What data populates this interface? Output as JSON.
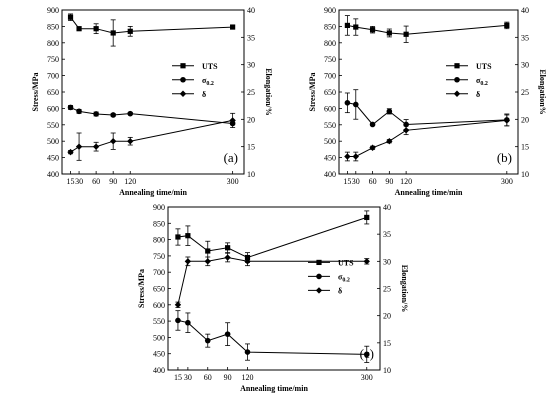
{
  "chart_data": [
    {
      "type": "line",
      "panel_label": "(a)",
      "xlabel": "Annealing time/min",
      "ylabel": "Stress/MPa",
      "y2label": "Elongation/%",
      "x": [
        15,
        30,
        60,
        90,
        120,
        300
      ],
      "xticks": [
        15,
        30,
        60,
        90,
        120,
        300
      ],
      "ylim": [
        400,
        900
      ],
      "yticks": [
        400,
        450,
        500,
        550,
        600,
        650,
        700,
        750,
        800,
        850,
        900
      ],
      "y2lim": [
        10,
        40
      ],
      "y2ticks": [
        10,
        15,
        20,
        25,
        30,
        35,
        40
      ],
      "legend_position": "right-middle",
      "legend": [
        "UTS",
        "σ0.2",
        "δ"
      ],
      "series": [
        {
          "name": "UTS",
          "axis": "left",
          "marker": "square",
          "values": [
            878,
            843,
            843,
            830,
            835,
            848
          ],
          "errors": [
            10,
            5,
            15,
            40,
            15,
            0
          ]
        },
        {
          "name": "σ0.2",
          "axis": "left",
          "marker": "circle",
          "values": [
            603,
            591,
            583,
            580,
            584,
            554
          ],
          "errors": [
            6,
            6,
            6,
            4,
            3,
            4
          ]
        },
        {
          "name": "δ",
          "axis": "right",
          "marker": "diamond",
          "values": [
            14.0,
            15.0,
            15.0,
            16.0,
            16.0,
            19.8
          ],
          "errors": [
            0.3,
            2.5,
            0.8,
            1.5,
            0.7,
            1.3
          ]
        }
      ]
    },
    {
      "type": "line",
      "panel_label": "(b)",
      "xlabel": "Annealing time/min",
      "ylabel": "Stress/MPa",
      "y2label": "Elongation%",
      "x": [
        15,
        30,
        60,
        90,
        120,
        300
      ],
      "xticks": [
        15,
        30,
        60,
        90,
        120,
        300
      ],
      "ylim": [
        400,
        900
      ],
      "yticks": [
        400,
        450,
        500,
        550,
        600,
        650,
        700,
        750,
        800,
        850,
        900
      ],
      "y2lim": [
        10,
        40
      ],
      "y2ticks": [
        10,
        15,
        20,
        25,
        30,
        35,
        40
      ],
      "legend_position": "right-middle",
      "legend": [
        "UTS",
        "σ0.2",
        "δ"
      ],
      "series": [
        {
          "name": "UTS",
          "axis": "left",
          "marker": "square",
          "values": [
            853,
            848,
            840,
            830,
            826,
            853
          ],
          "errors": [
            30,
            25,
            10,
            12,
            25,
            10
          ]
        },
        {
          "name": "σ0.2",
          "axis": "left",
          "marker": "circle",
          "values": [
            617,
            612,
            551,
            591,
            551,
            565
          ],
          "errors": [
            30,
            45,
            3,
            8,
            15,
            18
          ]
        },
        {
          "name": "δ",
          "axis": "right",
          "marker": "diamond",
          "values": [
            13.2,
            13.2,
            14.8,
            16.0,
            18.0,
            19.8
          ],
          "errors": [
            0.8,
            0.8,
            0.3,
            0.3,
            0.8,
            1.0
          ]
        }
      ]
    },
    {
      "type": "line",
      "panel_label": "(c)",
      "xlabel": "Annealing time/min",
      "ylabel": "Stress/MPa",
      "y2label": "Elongation/%",
      "x": [
        15,
        30,
        60,
        90,
        120,
        300
      ],
      "xticks": [
        15,
        30,
        60,
        90,
        120,
        300
      ],
      "ylim": [
        400,
        900
      ],
      "yticks": [
        400,
        450,
        500,
        550,
        600,
        650,
        700,
        750,
        800,
        850,
        900
      ],
      "y2lim": [
        10,
        40
      ],
      "y2ticks": [
        10,
        15,
        20,
        25,
        30,
        35,
        40
      ],
      "legend_position": "right-middle",
      "legend": [
        "UTS",
        "σ0.2",
        "δ"
      ],
      "series": [
        {
          "name": "UTS",
          "axis": "left",
          "marker": "square",
          "values": [
            808,
            812,
            765,
            775,
            745,
            868
          ],
          "errors": [
            25,
            30,
            30,
            15,
            15,
            20
          ]
        },
        {
          "name": "σ0.2",
          "axis": "left",
          "marker": "circle",
          "values": [
            552,
            545,
            490,
            510,
            455,
            448
          ],
          "errors": [
            30,
            30,
            20,
            35,
            25,
            25
          ]
        },
        {
          "name": "δ",
          "axis": "right",
          "marker": "diamond",
          "values": [
            22.0,
            30.0,
            30.0,
            30.7,
            30.0,
            30.0
          ],
          "errors": [
            0.5,
            0.8,
            0.8,
            0.8,
            0.8,
            0.5
          ]
        }
      ]
    }
  ]
}
